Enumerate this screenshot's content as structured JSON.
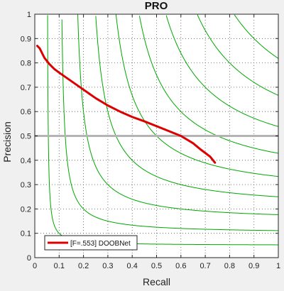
{
  "chart_data": {
    "type": "line",
    "title": "PRO",
    "xlabel": "Recall",
    "ylabel": "Precision",
    "xlim": [
      0,
      1
    ],
    "ylim": [
      0,
      1
    ],
    "xticks": [
      "0",
      "0.1",
      "0.2",
      "0.3",
      "0.4",
      "0.5",
      "0.6",
      "0.7",
      "0.8",
      "0.9",
      "1"
    ],
    "yticks": [
      "0",
      "0.1",
      "0.2",
      "0.3",
      "0.4",
      "0.5",
      "0.6",
      "0.7",
      "0.8",
      "0.9",
      "1"
    ],
    "grid": true,
    "legend_position": "bottom-left",
    "iso_f_curves": [
      0.1,
      0.2,
      0.3,
      0.4,
      0.5,
      0.6,
      0.7,
      0.8,
      0.9
    ],
    "reference_line": {
      "y": 0.5,
      "color": "#b4b4b4"
    },
    "series": [
      {
        "name": "[F=.553] DOOBNet",
        "color": "#dd0000",
        "x": [
          0.01,
          0.02,
          0.04,
          0.06,
          0.08,
          0.1,
          0.15,
          0.2,
          0.25,
          0.3,
          0.35,
          0.4,
          0.45,
          0.5,
          0.55,
          0.6,
          0.65,
          0.68,
          0.7,
          0.72,
          0.74
        ],
        "y": [
          0.87,
          0.86,
          0.82,
          0.795,
          0.775,
          0.76,
          0.725,
          0.69,
          0.655,
          0.625,
          0.6,
          0.578,
          0.56,
          0.54,
          0.52,
          0.5,
          0.47,
          0.445,
          0.43,
          0.415,
          0.39
        ]
      }
    ]
  }
}
